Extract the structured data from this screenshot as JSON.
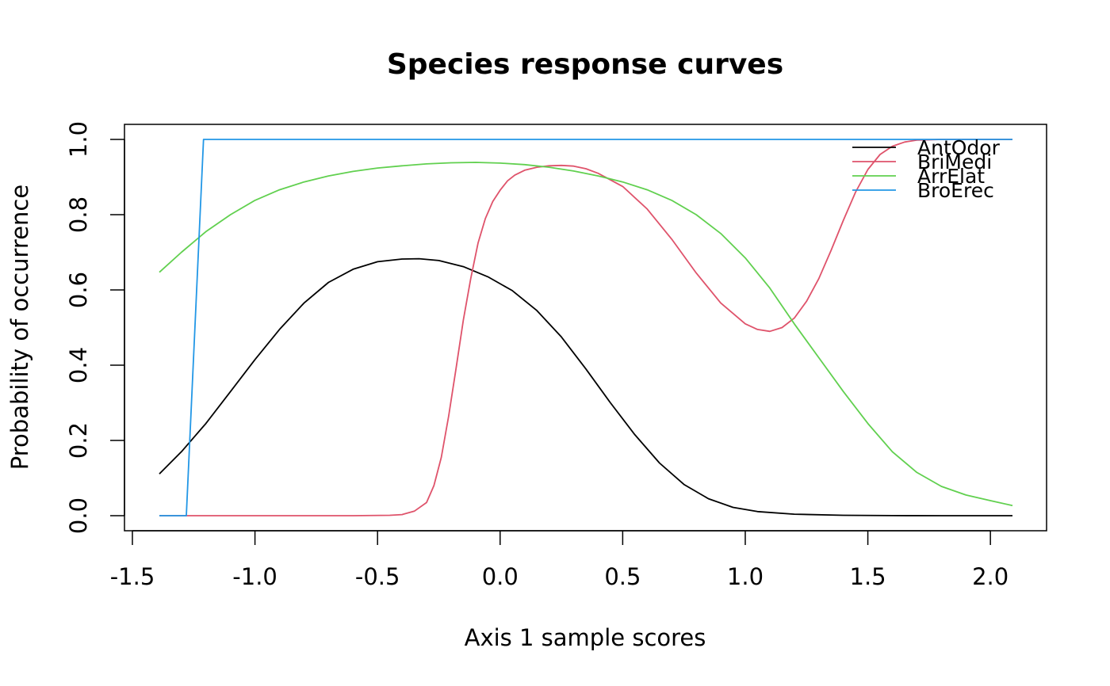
{
  "chart_data": {
    "type": "line",
    "title": "Species response curves",
    "xlabel": "Axis 1 sample scores",
    "ylabel": "Probability of occurrence",
    "xlim": [
      -1.39,
      2.09
    ],
    "ylim": [
      0.0,
      1.0
    ],
    "xticks": [
      -1.5,
      -1.0,
      -0.5,
      0.0,
      0.5,
      1.0,
      1.5,
      2.0
    ],
    "xtick_labels": [
      "-1.5",
      "-1.0",
      "-0.5",
      "0.0",
      "0.5",
      "1.0",
      "1.5",
      "2.0"
    ],
    "yticks": [
      0.0,
      0.2,
      0.4,
      0.6,
      0.8,
      1.0
    ],
    "ytick_labels": [
      "0.0",
      "0.2",
      "0.4",
      "0.6",
      "0.8",
      "1.0"
    ],
    "grid": false,
    "legend_position": "top-right",
    "series": [
      {
        "name": "AntOdor",
        "color": "#000000",
        "x": [
          -1.39,
          -1.3,
          -1.2,
          -1.1,
          -1.0,
          -0.9,
          -0.8,
          -0.7,
          -0.6,
          -0.5,
          -0.4,
          -0.33,
          -0.25,
          -0.15,
          -0.05,
          0.05,
          0.15,
          0.25,
          0.35,
          0.45,
          0.55,
          0.65,
          0.75,
          0.85,
          0.95,
          1.05,
          1.2,
          1.4,
          1.6,
          1.8,
          2.0,
          2.09
        ],
        "y": [
          0.111,
          0.17,
          0.245,
          0.33,
          0.415,
          0.495,
          0.565,
          0.62,
          0.655,
          0.675,
          0.682,
          0.683,
          0.678,
          0.662,
          0.635,
          0.598,
          0.545,
          0.475,
          0.39,
          0.3,
          0.215,
          0.14,
          0.083,
          0.045,
          0.022,
          0.011,
          0.004,
          0.001,
          0.0003,
          0.0001,
          0.0,
          0.0
        ]
      },
      {
        "name": "BriMedi",
        "color": "#df536b",
        "x": [
          -1.39,
          -0.6,
          -0.45,
          -0.4,
          -0.35,
          -0.3,
          -0.27,
          -0.24,
          -0.21,
          -0.18,
          -0.15,
          -0.12,
          -0.09,
          -0.06,
          -0.03,
          0.0,
          0.03,
          0.06,
          0.1,
          0.15,
          0.2,
          0.25,
          0.3,
          0.35,
          0.4,
          0.5,
          0.6,
          0.7,
          0.8,
          0.9,
          1.0,
          1.05,
          1.1,
          1.15,
          1.2,
          1.25,
          1.3,
          1.35,
          1.4,
          1.45,
          1.5,
          1.55,
          1.6,
          1.65,
          1.7,
          1.75,
          1.8,
          2.09
        ],
        "y": [
          0.0,
          0.0,
          0.001,
          0.003,
          0.012,
          0.035,
          0.08,
          0.155,
          0.265,
          0.39,
          0.52,
          0.63,
          0.725,
          0.79,
          0.835,
          0.865,
          0.89,
          0.905,
          0.918,
          0.926,
          0.93,
          0.931,
          0.929,
          0.922,
          0.91,
          0.875,
          0.815,
          0.735,
          0.645,
          0.565,
          0.51,
          0.495,
          0.49,
          0.5,
          0.525,
          0.57,
          0.63,
          0.705,
          0.785,
          0.86,
          0.92,
          0.96,
          0.982,
          0.993,
          0.998,
          0.999,
          1.0,
          1.0
        ]
      },
      {
        "name": "ArrElat",
        "color": "#61d04f",
        "x": [
          -1.39,
          -1.3,
          -1.2,
          -1.1,
          -1.0,
          -0.9,
          -0.8,
          -0.7,
          -0.6,
          -0.5,
          -0.4,
          -0.3,
          -0.2,
          -0.1,
          0.0,
          0.1,
          0.2,
          0.3,
          0.4,
          0.5,
          0.6,
          0.7,
          0.8,
          0.9,
          1.0,
          1.1,
          1.2,
          1.3,
          1.4,
          1.5,
          1.6,
          1.7,
          1.8,
          1.9,
          2.0,
          2.09
        ],
        "y": [
          0.647,
          0.7,
          0.755,
          0.8,
          0.838,
          0.866,
          0.887,
          0.903,
          0.915,
          0.924,
          0.93,
          0.935,
          0.938,
          0.939,
          0.937,
          0.933,
          0.926,
          0.916,
          0.903,
          0.887,
          0.866,
          0.838,
          0.8,
          0.75,
          0.685,
          0.605,
          0.51,
          0.42,
          0.33,
          0.245,
          0.17,
          0.115,
          0.078,
          0.055,
          0.04,
          0.027
        ]
      },
      {
        "name": "BroErec",
        "color": "#2297e6",
        "x": [
          -1.39,
          -1.28,
          -1.21,
          2.09
        ],
        "y": [
          0.0,
          0.0,
          1.0,
          1.0
        ]
      }
    ]
  }
}
